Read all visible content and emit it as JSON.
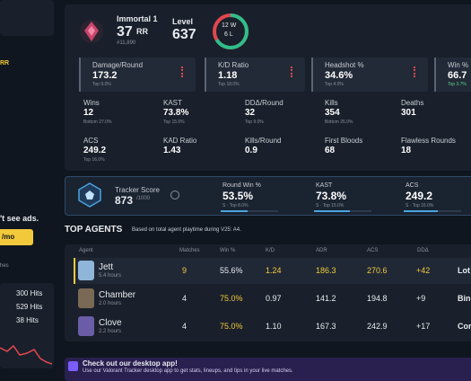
{
  "sidebar": {
    "rr_fragment": "RR",
    "ad_text": "'t see ads.",
    "price": "/mo",
    "section": "hes",
    "hits": [
      "300 Hits",
      "529 Hits",
      "38 Hits"
    ]
  },
  "profile": {
    "rank": "Immortal 1",
    "rr": "37",
    "rr_unit": "RR",
    "leaderboard": "#11,890",
    "level_label": "Level",
    "level": "637",
    "wins": "12 W",
    "losses": "6 L"
  },
  "highlight_cards": [
    {
      "label": "Damage/Round",
      "value": "173.2",
      "rank": "Top 9.0%"
    },
    {
      "label": "K/D Ratio",
      "value": "1.18",
      "rank": "Top 18.0%"
    },
    {
      "label": "Headshot %",
      "value": "34.6%",
      "rank": "Top 4.0%"
    },
    {
      "label": "Win %",
      "value": "66.7",
      "rank": "Top 3.7%"
    }
  ],
  "stats": [
    {
      "label": "Wins",
      "value": "12",
      "rank": "Bottom 27.0%"
    },
    {
      "label": "KAST",
      "value": "73.8%",
      "rank": "Top 15.0%"
    },
    {
      "label": "DDΔ/Round",
      "value": "32",
      "rank": "Top 9.0%"
    },
    {
      "label": "Kills",
      "value": "354",
      "rank": "Bottom 26.0%"
    },
    {
      "label": "Deaths",
      "value": "301"
    },
    {
      "label": "ACS",
      "value": "249.2",
      "rank": "Top 16.0%"
    },
    {
      "label": "KAD Ratio",
      "value": "1.43"
    },
    {
      "label": "Kills/Round",
      "value": "0.9"
    },
    {
      "label": "First Bloods",
      "value": "68"
    },
    {
      "label": "Flawless Rounds",
      "value": "18"
    }
  ],
  "tracker": {
    "label": "Tracker Score",
    "score": "873",
    "max": "/1000",
    "metrics": [
      {
        "label": "Round Win %",
        "value": "53.5%",
        "rank": "S · Top 8.0%"
      },
      {
        "label": "KAST",
        "value": "73.8%",
        "rank": "S · Top 15.0%"
      },
      {
        "label": "ACS",
        "value": "249.2",
        "rank": "S · Top 16.0%"
      }
    ]
  },
  "top_agents": {
    "title": "TOP AGENTS",
    "note": "Based on total agent playtime during V25: A4.",
    "columns": [
      "Agent",
      "Matches",
      "Win %",
      "K/D",
      "ADR",
      "ACS",
      "DDΔ"
    ],
    "rows": [
      {
        "agent": "Jett",
        "time": "5.4 hours",
        "cells": [
          "9",
          "55.6%",
          "1.24",
          "186.3",
          "270.6",
          "+42",
          "Lot"
        ]
      },
      {
        "agent": "Chamber",
        "time": "2.0 hours",
        "cells": [
          "4",
          "75.0%",
          "0.97",
          "141.2",
          "194.8",
          "+9",
          "Bin"
        ]
      },
      {
        "agent": "Clove",
        "time": "2.2 hours",
        "cells": [
          "4",
          "75.0%",
          "1.10",
          "167.3",
          "242.9",
          "+17",
          "Corrod"
        ]
      }
    ]
  },
  "banner": {
    "title": "Check out our desktop app!",
    "text": "Use our Valorant Tracker desktop app to get stats, lineups, and tips in your live matches."
  }
}
